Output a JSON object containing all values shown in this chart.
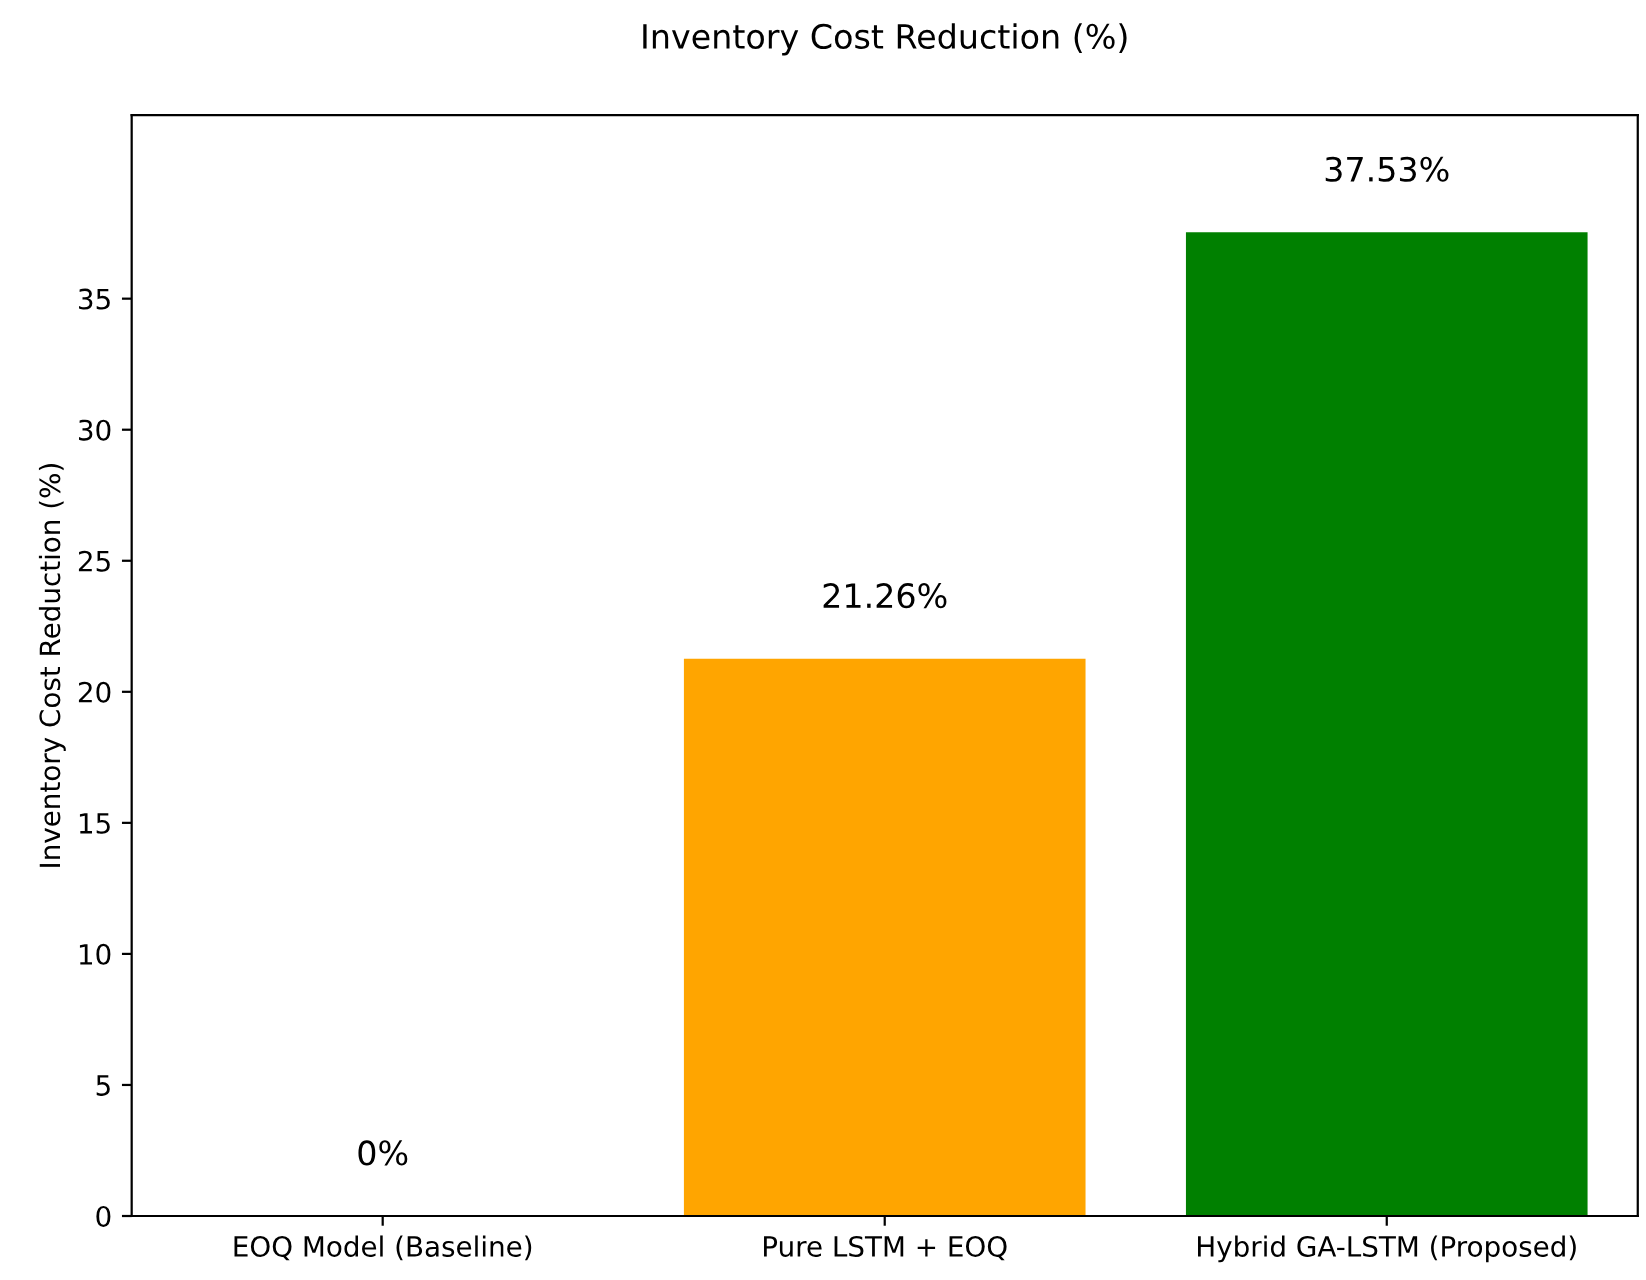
{
  "chart_data": {
    "type": "bar",
    "title": "Inventory Cost Reduction (%)",
    "ylabel": "Inventory Cost Reduction (%)",
    "categories": [
      "EOQ Model (Baseline)",
      "Pure LSTM + EOQ",
      "Hybrid GA-LSTM (Proposed)"
    ],
    "values": [
      0,
      21.26,
      37.53
    ],
    "colors": [
      "#808080",
      "#ffa500",
      "#008000"
    ],
    "value_labels": [
      "0%",
      "21.26%",
      "37.53%"
    ],
    "ylim": [
      0,
      42
    ],
    "yticks": [
      0,
      5,
      10,
      15,
      20,
      25,
      30,
      35
    ],
    "grid": false,
    "legend": false
  }
}
